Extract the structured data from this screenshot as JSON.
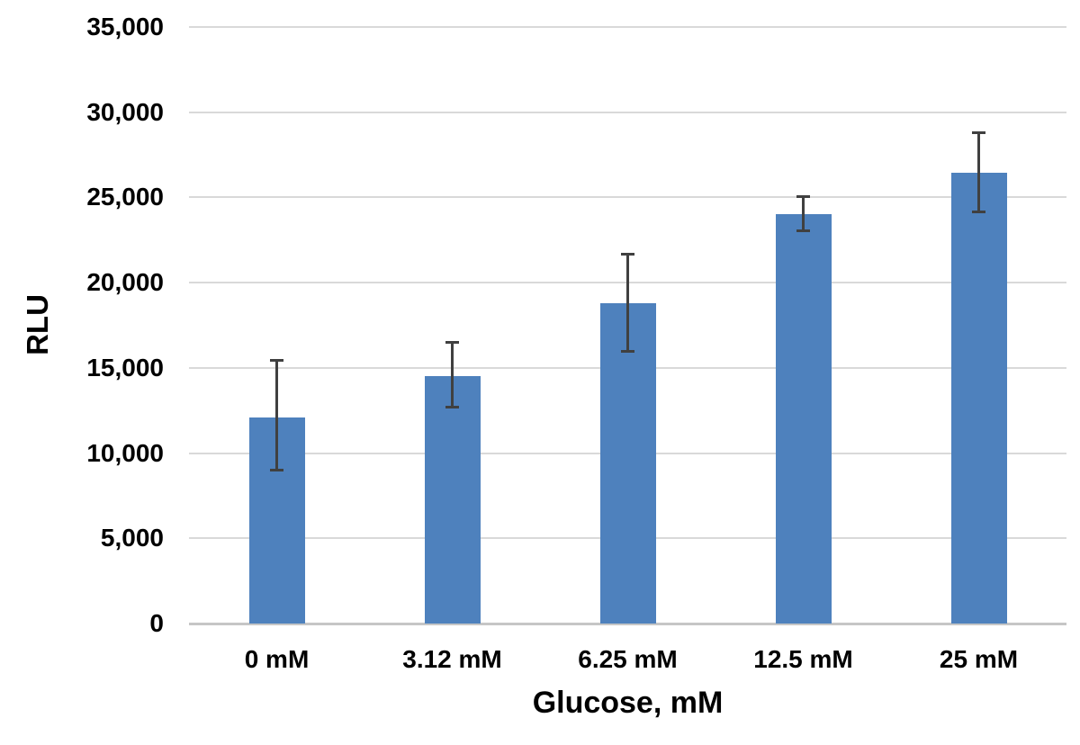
{
  "chart_data": {
    "type": "bar",
    "title": "",
    "xlabel": "Glucose, mM",
    "ylabel": "RLU",
    "categories": [
      "0 mM",
      "3.12 mM",
      "6.25 mM",
      "12.5 mM",
      "25 mM"
    ],
    "values": [
      12100,
      14500,
      18800,
      24000,
      26450
    ],
    "error_upper": [
      15450,
      16500,
      21700,
      25050,
      28800
    ],
    "error_lower": [
      8950,
      12650,
      15950,
      23000,
      24100
    ],
    "ylim": [
      0,
      35000
    ],
    "ytick_step": 5000,
    "yticks": [
      {
        "value": 0,
        "label": "0"
      },
      {
        "value": 5000,
        "label": "5,000"
      },
      {
        "value": 10000,
        "label": "10,000"
      },
      {
        "value": 15000,
        "label": "15,000"
      },
      {
        "value": 20000,
        "label": "20,000"
      },
      {
        "value": 25000,
        "label": "25,000"
      },
      {
        "value": 30000,
        "label": "30,000"
      },
      {
        "value": 35000,
        "label": "35,000"
      }
    ],
    "grid": true,
    "legend": false,
    "colors": {
      "bar": "#4e81bd",
      "error_bar": "#404040",
      "gridline": "#d9d9d9",
      "axis_line": "#c6c6c6",
      "text": "#000000"
    }
  }
}
